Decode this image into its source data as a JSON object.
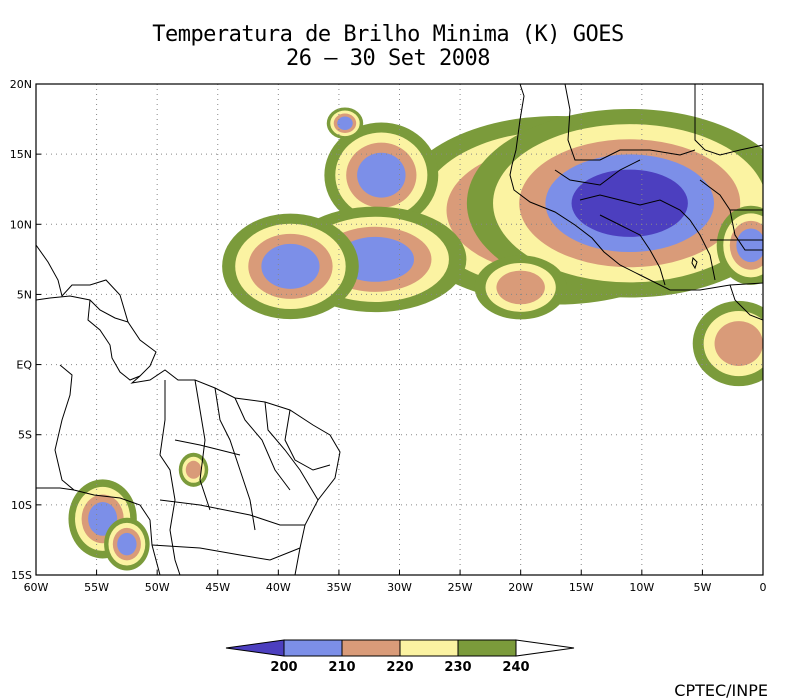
{
  "title": "Temperatura de Brilho Minima (K) GOES",
  "subtitle": "26 – 30 Set 2008",
  "credit": "CPTEC/INPE",
  "map": {
    "lon_range": [
      -60,
      0
    ],
    "lat_range": [
      -15,
      20
    ],
    "grid": true,
    "x_ticks": [
      "60W",
      "55W",
      "50W",
      "45W",
      "40W",
      "35W",
      "30W",
      "25W",
      "20W",
      "15W",
      "10W",
      "5W",
      "0"
    ],
    "y_ticks": [
      "20N",
      "15N",
      "10N",
      "5N",
      "EQ",
      "5S",
      "10S",
      "15S"
    ]
  },
  "legend": {
    "labels": [
      "200",
      "210",
      "220",
      "230",
      "240"
    ],
    "colors": {
      "below_200": "#4c3fbf",
      "200_210": "#7c8fe8",
      "210_220": "#d99b79",
      "220_230": "#fbf3a2",
      "230_240": "#7b9b3b"
    }
  },
  "cloud_regions": [
    {
      "lon": -17,
      "lat": 11,
      "rx": 6,
      "ry": 3,
      "min_class": "below_200"
    },
    {
      "lon": -11,
      "lat": 11.5,
      "rx": 6,
      "ry": 3,
      "min_class": "below_200"
    },
    {
      "lon": -31.5,
      "lat": 13.5,
      "rx": 2.5,
      "ry": 2,
      "min_class": "200_210"
    },
    {
      "lon": -34.5,
      "lat": 17.2,
      "rx": 0.8,
      "ry": 0.6,
      "min_class": "200_210"
    },
    {
      "lon": -32,
      "lat": 7.5,
      "rx": 4,
      "ry": 2,
      "min_class": "200_210"
    },
    {
      "lon": -39,
      "lat": 7,
      "rx": 3,
      "ry": 2,
      "min_class": "200_210"
    },
    {
      "lon": -20,
      "lat": 5.5,
      "rx": 2.5,
      "ry": 1.5,
      "min_class": "210_220"
    },
    {
      "lon": -2,
      "lat": 1.5,
      "rx": 2.5,
      "ry": 2,
      "min_class": "210_220"
    },
    {
      "lon": -54.5,
      "lat": -11,
      "rx": 1.5,
      "ry": 1.5,
      "min_class": "200_210"
    },
    {
      "lon": -52.5,
      "lat": -12.8,
      "rx": 1,
      "ry": 1,
      "min_class": "200_210"
    },
    {
      "lon": -47,
      "lat": -7.5,
      "rx": 0.8,
      "ry": 0.8,
      "min_class": "210_220"
    },
    {
      "lon": -1,
      "lat": 8.5,
      "rx": 1.5,
      "ry": 1.5,
      "min_class": "200_210"
    }
  ]
}
